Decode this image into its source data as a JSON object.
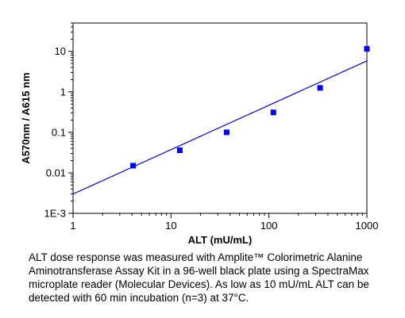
{
  "chart_data": {
    "type": "scatter",
    "x_scale": "log",
    "y_scale": "log",
    "xlabel": "ALT (mU/mL)",
    "ylabel": "A570nm / A615 nm",
    "xlim": [
      1,
      1000
    ],
    "ylim": [
      0.001,
      50
    ],
    "x_ticks": [
      {
        "value": 1,
        "label": "1"
      },
      {
        "value": 10,
        "label": "10"
      },
      {
        "value": 100,
        "label": "100"
      },
      {
        "value": 1000,
        "label": "1000"
      }
    ],
    "y_ticks": [
      {
        "value": 0.001,
        "label": "1E-3"
      },
      {
        "value": 0.01,
        "label": "0.01"
      },
      {
        "value": 0.1,
        "label": "0.1"
      },
      {
        "value": 1,
        "label": "1"
      },
      {
        "value": 10,
        "label": "10"
      }
    ],
    "grid": false,
    "series": [
      {
        "marker": "square",
        "color": "#0000ff",
        "points": [
          {
            "x": 4.1,
            "y": 0.015
          },
          {
            "x": 12.3,
            "y": 0.036
          },
          {
            "x": 37,
            "y": 0.1
          },
          {
            "x": 111,
            "y": 0.31
          },
          {
            "x": 333,
            "y": 1.25
          },
          {
            "x": 1000,
            "y": 11.5
          }
        ]
      }
    ],
    "fit_line": {
      "color": "#0000cc",
      "points": [
        {
          "x": 1,
          "y": 0.003
        },
        {
          "x": 1000,
          "y": 5.8
        }
      ]
    }
  },
  "caption": "ALT dose response was measured with Amplite™ Colorimetric Alanine Aminotransferase Assay Kit in a 96-well black plate using  a SpectraMax microplate reader (Molecular Devices). As low as 10 mU/mL ALT can be detected with 60 min incubation (n=3) at 37°C."
}
